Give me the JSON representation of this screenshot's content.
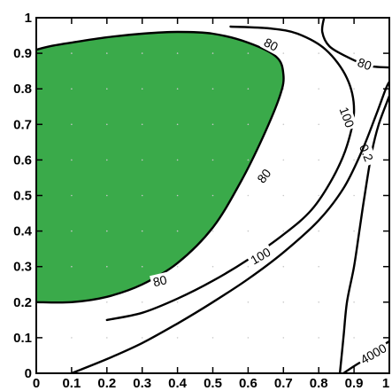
{
  "chart_data": {
    "type": "contour",
    "title": "",
    "xlabel": "",
    "ylabel": "",
    "xlim": [
      0,
      1
    ],
    "ylim": [
      0,
      1
    ],
    "x_ticks": [
      "0",
      "0.1",
      "0.2",
      "0.3",
      "0.4",
      "0.5",
      "0.6",
      "0.7",
      "0.8",
      "0.9",
      "1"
    ],
    "y_ticks": [
      "0",
      "0.1",
      "0.2",
      "0.3",
      "0.4",
      "0.5",
      "0.6",
      "0.7",
      "0.8",
      "0.9",
      "1"
    ],
    "grid": false,
    "filled_region": {
      "color": "#3aaa4a",
      "bounded_by_level": "80",
      "points": [
        [
          0,
          0.2
        ],
        [
          0.1,
          0.2
        ],
        [
          0.2,
          0.215
        ],
        [
          0.3,
          0.25
        ],
        [
          0.4,
          0.31
        ],
        [
          0.5,
          0.41
        ],
        [
          0.58,
          0.54
        ],
        [
          0.64,
          0.66
        ],
        [
          0.69,
          0.78
        ],
        [
          0.7,
          0.84
        ],
        [
          0.68,
          0.89
        ],
        [
          0.6,
          0.93
        ],
        [
          0.5,
          0.955
        ],
        [
          0.4,
          0.96
        ],
        [
          0.3,
          0.955
        ],
        [
          0.2,
          0.945
        ],
        [
          0.1,
          0.93
        ],
        [
          0.04,
          0.92
        ],
        [
          0,
          0.91
        ]
      ]
    },
    "contours": [
      {
        "level": "80",
        "labels": [
          {
            "text": "80",
            "x": 0.35,
            "y": 0.26,
            "angle": -13
          },
          {
            "text": "80",
            "x": 0.645,
            "y": 0.555,
            "angle": -52
          },
          {
            "text": "80",
            "x": 0.665,
            "y": 0.925,
            "angle": 28
          }
        ],
        "points": [
          [
            0,
            0.2
          ],
          [
            0.1,
            0.2
          ],
          [
            0.2,
            0.215
          ],
          [
            0.3,
            0.25
          ],
          [
            0.4,
            0.31
          ],
          [
            0.5,
            0.41
          ],
          [
            0.58,
            0.54
          ],
          [
            0.64,
            0.66
          ],
          [
            0.69,
            0.78
          ],
          [
            0.7,
            0.84
          ],
          [
            0.68,
            0.89
          ],
          [
            0.6,
            0.93
          ],
          [
            0.5,
            0.955
          ],
          [
            0.4,
            0.96
          ],
          [
            0.3,
            0.955
          ],
          [
            0.2,
            0.945
          ],
          [
            0.1,
            0.93
          ],
          [
            0.04,
            0.92
          ],
          [
            0,
            0.91
          ]
        ]
      },
      {
        "level": "100",
        "labels": [
          {
            "text": "100",
            "x": 0.635,
            "y": 0.33,
            "angle": -30
          },
          {
            "text": "100",
            "x": 0.88,
            "y": 0.72,
            "angle": 70
          }
        ],
        "points": [
          [
            0.2,
            0.15
          ],
          [
            0.3,
            0.17
          ],
          [
            0.4,
            0.21
          ],
          [
            0.5,
            0.26
          ],
          [
            0.6,
            0.32
          ],
          [
            0.7,
            0.39
          ],
          [
            0.78,
            0.46
          ],
          [
            0.84,
            0.55
          ],
          [
            0.88,
            0.64
          ],
          [
            0.9,
            0.74
          ],
          [
            0.88,
            0.83
          ],
          [
            0.82,
            0.91
          ],
          [
            0.74,
            0.955
          ],
          [
            0.66,
            0.97
          ],
          [
            0.55,
            0.975
          ]
        ]
      },
      {
        "level": "80",
        "labels": [
          {
            "text": "80",
            "x": 0.93,
            "y": 0.87,
            "angle": 20
          }
        ],
        "points": [
          [
            0.815,
            1.0
          ],
          [
            0.81,
            0.96
          ],
          [
            0.83,
            0.92
          ],
          [
            0.88,
            0.89
          ],
          [
            0.94,
            0.865
          ],
          [
            1.0,
            0.86
          ]
        ]
      },
      {
        "level": "0.2",
        "labels": [
          {
            "text": "0.2",
            "x": 0.935,
            "y": 0.62,
            "angle": 68
          }
        ],
        "points": [
          [
            0.86,
            0.0
          ],
          [
            0.87,
            0.1
          ],
          [
            0.88,
            0.2
          ],
          [
            0.9,
            0.3
          ],
          [
            0.915,
            0.4
          ],
          [
            0.93,
            0.5
          ],
          [
            0.95,
            0.62
          ],
          [
            0.97,
            0.7
          ],
          [
            1.0,
            0.78
          ]
        ]
      },
      {
        "level": "4000",
        "labels": [
          {
            "text": "4000",
            "x": 0.955,
            "y": 0.055,
            "angle": -30
          }
        ],
        "points": [
          [
            0.87,
            0.0
          ],
          [
            0.9,
            0.02
          ],
          [
            0.94,
            0.045
          ],
          [
            0.97,
            0.07
          ],
          [
            1.0,
            0.09
          ]
        ]
      },
      {
        "level": "",
        "labels": [],
        "points": [
          [
            0.1,
            0.0
          ],
          [
            0.2,
            0.04
          ],
          [
            0.3,
            0.085
          ],
          [
            0.4,
            0.14
          ],
          [
            0.5,
            0.2
          ],
          [
            0.6,
            0.265
          ],
          [
            0.7,
            0.34
          ],
          [
            0.8,
            0.43
          ],
          [
            0.87,
            0.52
          ],
          [
            0.92,
            0.62
          ],
          [
            0.96,
            0.72
          ],
          [
            0.99,
            0.8
          ],
          [
            1.0,
            0.82
          ]
        ]
      }
    ]
  }
}
